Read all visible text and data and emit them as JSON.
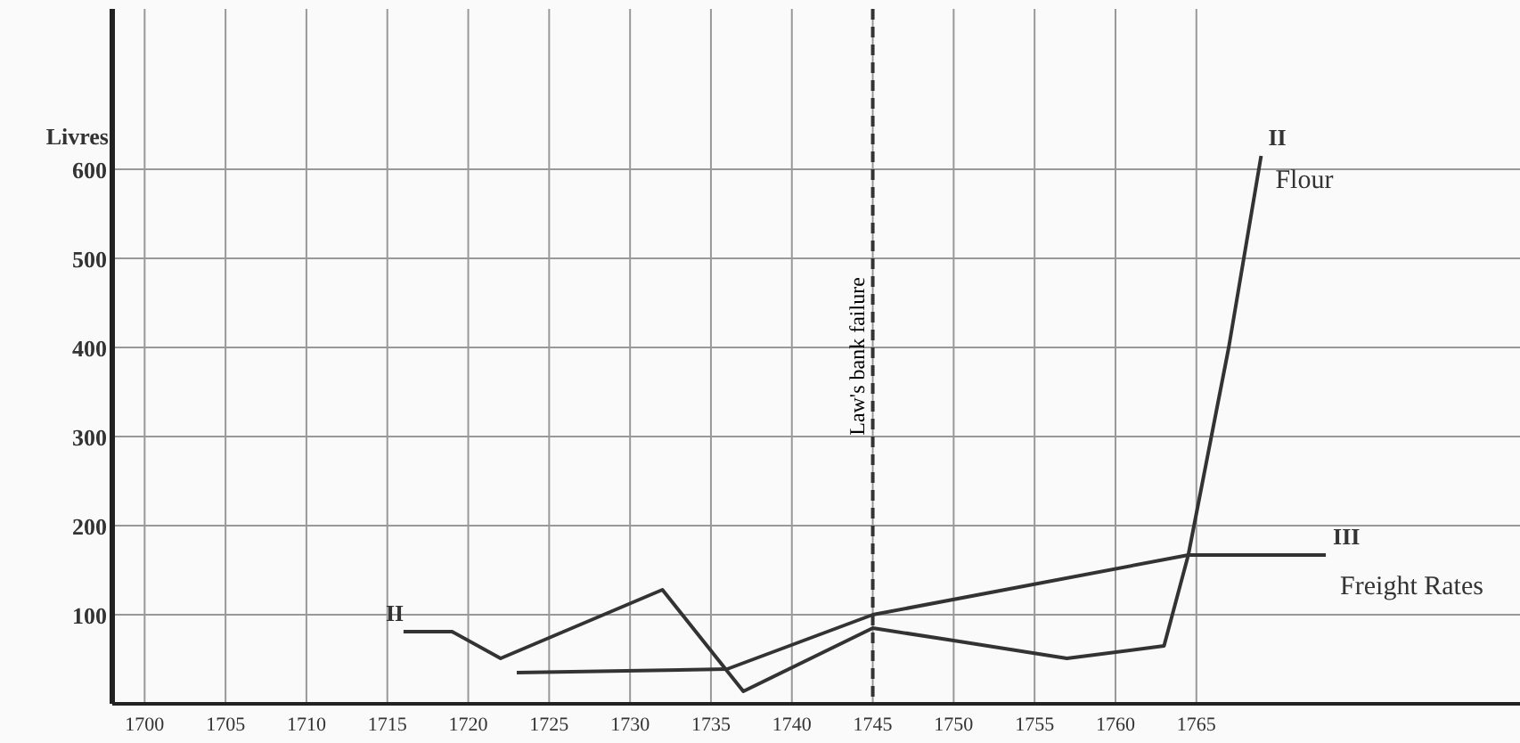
{
  "chart_data": {
    "type": "line",
    "ylabel": "Livres",
    "xlim": [
      1698,
      1785
    ],
    "ylim": [
      0,
      780
    ],
    "xticks": [
      1700,
      1705,
      1710,
      1715,
      1720,
      1725,
      1730,
      1735,
      1740,
      1745,
      1750,
      1755,
      1760,
      1765
    ],
    "yticks": [
      {
        "value": 0,
        "label": null
      },
      100,
      200,
      300,
      400,
      500,
      600
    ],
    "grid": true,
    "marker": "none",
    "line_style": "solid",
    "series": [
      {
        "name": "Flour",
        "color": "#333333",
        "x": [
          1716,
          1719,
          1722,
          1732,
          1737,
          1745,
          1750,
          1757,
          1763,
          1764.5,
          1767,
          1769
        ],
        "values": [
          81,
          81,
          51,
          128,
          14,
          85,
          71,
          51,
          65,
          167,
          400,
          615
        ]
      },
      {
        "name": "Freight Rates",
        "color": "#333333",
        "x": [
          1723,
          1736,
          1745,
          1764.5,
          1773
        ],
        "values": [
          35,
          39,
          100,
          167,
          167
        ]
      }
    ],
    "ref_lines": [
      {
        "axis": "x",
        "value": 1745,
        "label": "Law's bank failure",
        "color": "#333333",
        "line_style": "dashed"
      }
    ],
    "annotations": [
      "II",
      "II",
      "III"
    ]
  }
}
